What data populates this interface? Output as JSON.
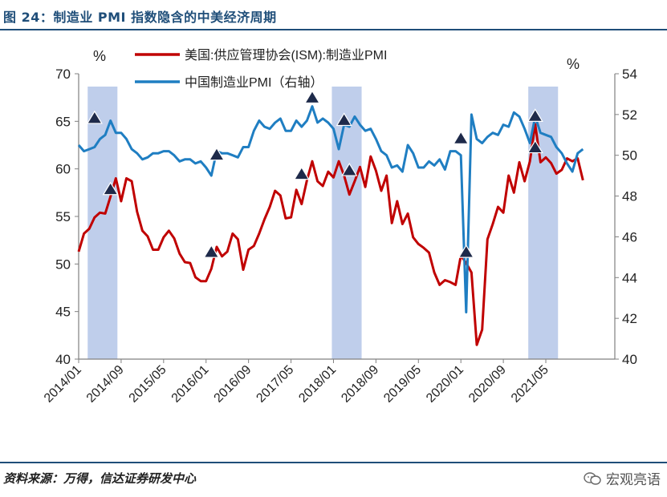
{
  "figure_title": "图 24：制造业 PMI 指数隐含的中美经济周期",
  "source_note": "资料来源：万得，信达证券研发中心",
  "watermark": "宏观亮语",
  "colors": {
    "us": "#c00000",
    "cn": "#1f7ec2",
    "shade": "#b4c6e7",
    "axis": "#808080",
    "accent": "#1f4e79"
  },
  "chart_data": {
    "type": "line",
    "left_axis": {
      "unit_label": "%",
      "range": [
        40,
        70
      ],
      "ticks": [
        40,
        45,
        50,
        55,
        60,
        65,
        70
      ]
    },
    "right_axis": {
      "unit_label": "%",
      "range": [
        40,
        54
      ],
      "ticks": [
        40,
        42,
        44,
        46,
        48,
        50,
        52,
        54
      ]
    },
    "x_range": [
      "2014-01",
      "2022-06"
    ],
    "x_tick_labels": [
      "2014/01",
      "2014/09",
      "2015/05",
      "2016/01",
      "2016/09",
      "2017/05",
      "2018/01",
      "2018/09",
      "2019/05",
      "2020/01",
      "2020/09",
      "2021/05"
    ],
    "grid": false,
    "legend_position": "top",
    "series": [
      {
        "name": "美国:供应管理协会(ISM):制造业PMI",
        "axis": "left",
        "values": [
          [
            "2014-01",
            51.3
          ],
          [
            "2014-02",
            53.2
          ],
          [
            "2014-03",
            53.7
          ],
          [
            "2014-04",
            54.9
          ],
          [
            "2014-05",
            55.4
          ],
          [
            "2014-06",
            55.3
          ],
          [
            "2014-07",
            57.1
          ],
          [
            "2014-08",
            59.0
          ],
          [
            "2014-09",
            56.6
          ],
          [
            "2014-10",
            59.0
          ],
          [
            "2014-11",
            58.7
          ],
          [
            "2014-12",
            55.5
          ],
          [
            "2015-01",
            53.5
          ],
          [
            "2015-02",
            52.9
          ],
          [
            "2015-03",
            51.5
          ],
          [
            "2015-04",
            51.5
          ],
          [
            "2015-05",
            52.8
          ],
          [
            "2015-06",
            53.5
          ],
          [
            "2015-07",
            52.7
          ],
          [
            "2015-08",
            51.1
          ],
          [
            "2015-09",
            50.2
          ],
          [
            "2015-10",
            50.1
          ],
          [
            "2015-11",
            48.6
          ],
          [
            "2015-12",
            48.2
          ],
          [
            "2016-01",
            48.2
          ],
          [
            "2016-02",
            49.5
          ],
          [
            "2016-03",
            51.8
          ],
          [
            "2016-04",
            50.8
          ],
          [
            "2016-05",
            51.3
          ],
          [
            "2016-06",
            53.2
          ],
          [
            "2016-07",
            52.6
          ],
          [
            "2016-08",
            49.4
          ],
          [
            "2016-09",
            51.5
          ],
          [
            "2016-10",
            51.9
          ],
          [
            "2016-11",
            53.2
          ],
          [
            "2016-12",
            54.7
          ],
          [
            "2017-01",
            56.0
          ],
          [
            "2017-02",
            57.7
          ],
          [
            "2017-03",
            57.2
          ],
          [
            "2017-04",
            54.8
          ],
          [
            "2017-05",
            54.9
          ],
          [
            "2017-06",
            57.8
          ],
          [
            "2017-07",
            56.3
          ],
          [
            "2017-08",
            58.8
          ],
          [
            "2017-09",
            60.8
          ],
          [
            "2017-10",
            58.7
          ],
          [
            "2017-11",
            58.2
          ],
          [
            "2017-12",
            59.7
          ],
          [
            "2018-01",
            59.1
          ],
          [
            "2018-02",
            60.8
          ],
          [
            "2018-03",
            59.3
          ],
          [
            "2018-04",
            57.3
          ],
          [
            "2018-05",
            58.7
          ],
          [
            "2018-06",
            60.2
          ],
          [
            "2018-07",
            58.1
          ],
          [
            "2018-08",
            61.3
          ],
          [
            "2018-09",
            59.8
          ],
          [
            "2018-10",
            57.7
          ],
          [
            "2018-11",
            59.3
          ],
          [
            "2018-12",
            54.3
          ],
          [
            "2019-01",
            56.6
          ],
          [
            "2019-02",
            54.2
          ],
          [
            "2019-03",
            55.3
          ],
          [
            "2019-04",
            52.8
          ],
          [
            "2019-05",
            52.1
          ],
          [
            "2019-06",
            51.7
          ],
          [
            "2019-07",
            51.2
          ],
          [
            "2019-08",
            49.1
          ],
          [
            "2019-09",
            47.8
          ],
          [
            "2019-10",
            48.3
          ],
          [
            "2019-11",
            48.1
          ],
          [
            "2019-12",
            47.8
          ],
          [
            "2020-01",
            50.9
          ],
          [
            "2020-02",
            50.1
          ],
          [
            "2020-03",
            49.1
          ],
          [
            "2020-04",
            41.5
          ],
          [
            "2020-05",
            43.1
          ],
          [
            "2020-06",
            52.6
          ],
          [
            "2020-07",
            54.2
          ],
          [
            "2020-08",
            56.0
          ],
          [
            "2020-09",
            55.4
          ],
          [
            "2020-10",
            59.3
          ],
          [
            "2020-11",
            57.5
          ],
          [
            "2020-12",
            60.7
          ],
          [
            "2021-01",
            58.7
          ],
          [
            "2021-02",
            60.8
          ],
          [
            "2021-03",
            64.7
          ],
          [
            "2021-04",
            60.7
          ],
          [
            "2021-05",
            61.2
          ],
          [
            "2021-06",
            60.6
          ],
          [
            "2021-07",
            59.5
          ],
          [
            "2021-08",
            59.9
          ],
          [
            "2021-09",
            61.1
          ],
          [
            "2021-10",
            60.8
          ],
          [
            "2021-11",
            61.1
          ],
          [
            "2021-12",
            58.8
          ]
        ]
      },
      {
        "name": "中国制造业PMI（右轴）",
        "axis": "right",
        "values": [
          [
            "2014-01",
            50.5
          ],
          [
            "2014-02",
            50.2
          ],
          [
            "2014-03",
            50.3
          ],
          [
            "2014-04",
            50.4
          ],
          [
            "2014-05",
            50.8
          ],
          [
            "2014-06",
            51.0
          ],
          [
            "2014-07",
            51.7
          ],
          [
            "2014-08",
            51.1
          ],
          [
            "2014-09",
            51.1
          ],
          [
            "2014-10",
            50.8
          ],
          [
            "2014-11",
            50.3
          ],
          [
            "2014-12",
            50.1
          ],
          [
            "2015-01",
            49.8
          ],
          [
            "2015-02",
            49.9
          ],
          [
            "2015-03",
            50.1
          ],
          [
            "2015-04",
            50.1
          ],
          [
            "2015-05",
            50.2
          ],
          [
            "2015-06",
            50.2
          ],
          [
            "2015-07",
            50.0
          ],
          [
            "2015-08",
            49.7
          ],
          [
            "2015-09",
            49.8
          ],
          [
            "2015-10",
            49.8
          ],
          [
            "2015-11",
            49.6
          ],
          [
            "2015-12",
            49.7
          ],
          [
            "2016-01",
            49.4
          ],
          [
            "2016-02",
            49.0
          ],
          [
            "2016-03",
            50.2
          ],
          [
            "2016-04",
            50.1
          ],
          [
            "2016-05",
            50.1
          ],
          [
            "2016-06",
            50.0
          ],
          [
            "2016-07",
            49.9
          ],
          [
            "2016-08",
            50.4
          ],
          [
            "2016-09",
            50.4
          ],
          [
            "2016-10",
            51.2
          ],
          [
            "2016-11",
            51.7
          ],
          [
            "2016-12",
            51.4
          ],
          [
            "2017-01",
            51.3
          ],
          [
            "2017-02",
            51.6
          ],
          [
            "2017-03",
            51.8
          ],
          [
            "2017-04",
            51.2
          ],
          [
            "2017-05",
            51.2
          ],
          [
            "2017-06",
            51.7
          ],
          [
            "2017-07",
            51.4
          ],
          [
            "2017-08",
            51.7
          ],
          [
            "2017-09",
            52.4
          ],
          [
            "2017-10",
            51.6
          ],
          [
            "2017-11",
            51.8
          ],
          [
            "2017-12",
            51.6
          ],
          [
            "2018-01",
            51.3
          ],
          [
            "2018-02",
            50.3
          ],
          [
            "2018-03",
            51.5
          ],
          [
            "2018-04",
            51.4
          ],
          [
            "2018-05",
            51.9
          ],
          [
            "2018-06",
            51.5
          ],
          [
            "2018-07",
            51.2
          ],
          [
            "2018-08",
            51.3
          ],
          [
            "2018-09",
            50.8
          ],
          [
            "2018-10",
            50.2
          ],
          [
            "2018-11",
            50.0
          ],
          [
            "2018-12",
            49.4
          ],
          [
            "2019-01",
            49.5
          ],
          [
            "2019-02",
            49.2
          ],
          [
            "2019-03",
            50.5
          ],
          [
            "2019-04",
            50.1
          ],
          [
            "2019-05",
            49.4
          ],
          [
            "2019-06",
            49.4
          ],
          [
            "2019-07",
            49.7
          ],
          [
            "2019-08",
            49.5
          ],
          [
            "2019-09",
            49.8
          ],
          [
            "2019-10",
            49.3
          ],
          [
            "2019-11",
            50.2
          ],
          [
            "2019-12",
            50.2
          ],
          [
            "2020-01",
            50.0
          ],
          [
            "2020-02",
            42.3
          ],
          [
            "2020-03",
            52.0
          ],
          [
            "2020-04",
            50.8
          ],
          [
            "2020-05",
            50.6
          ],
          [
            "2020-06",
            50.9
          ],
          [
            "2020-07",
            51.1
          ],
          [
            "2020-08",
            51.0
          ],
          [
            "2020-09",
            51.5
          ],
          [
            "2020-10",
            51.4
          ],
          [
            "2020-11",
            52.1
          ],
          [
            "2020-12",
            51.9
          ],
          [
            "2021-01",
            51.3
          ],
          [
            "2021-02",
            50.6
          ],
          [
            "2021-03",
            51.9
          ],
          [
            "2021-04",
            51.1
          ],
          [
            "2021-05",
            51.0
          ],
          [
            "2021-06",
            50.9
          ],
          [
            "2021-07",
            50.4
          ],
          [
            "2021-08",
            50.1
          ],
          [
            "2021-09",
            49.6
          ],
          [
            "2021-10",
            49.2
          ],
          [
            "2021-11",
            50.1
          ],
          [
            "2021-12",
            50.3
          ]
        ]
      }
    ],
    "shaded_periods": [
      [
        "2014-03",
        "2014-08"
      ],
      [
        "2018-01",
        "2018-06"
      ],
      [
        "2021-02",
        "2021-07"
      ]
    ],
    "markers": [
      {
        "date": "2014-04",
        "series": "cn",
        "value": 51.8
      },
      {
        "date": "2014-07",
        "series": "us",
        "value": 57.8
      },
      {
        "date": "2016-03",
        "series": "cn",
        "value": 50.0
      },
      {
        "date": "2016-02",
        "series": "us",
        "value": 51.2
      },
      {
        "date": "2017-09",
        "series": "cn",
        "value": 52.8
      },
      {
        "date": "2017-07",
        "series": "us",
        "value": 59.4
      },
      {
        "date": "2018-03",
        "series": "cn",
        "value": 51.7
      },
      {
        "date": "2018-04",
        "series": "us",
        "value": 59.8
      },
      {
        "date": "2020-01",
        "series": "cn",
        "value": 50.8
      },
      {
        "date": "2020-02",
        "series": "us",
        "value": 51.2
      },
      {
        "date": "2021-03",
        "series": "cn",
        "value": 51.9
      },
      {
        "date": "2021-03",
        "series": "us",
        "value": 62.2
      }
    ]
  }
}
